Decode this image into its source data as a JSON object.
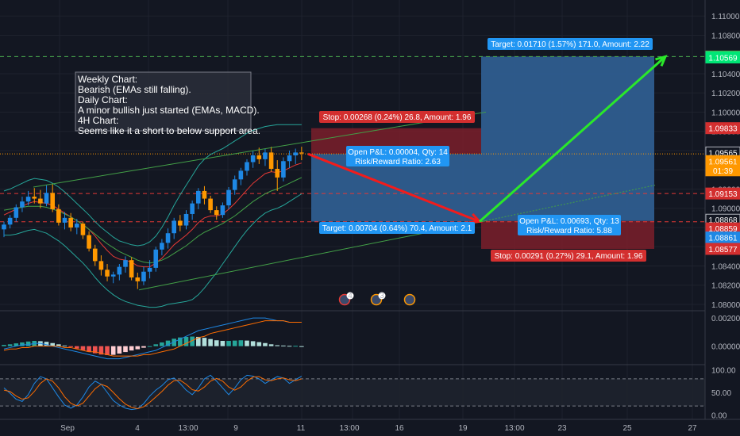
{
  "chart_data": {
    "type": "candlestick",
    "price_axis": {
      "ticks": [
        "1.11000",
        "1.10800",
        "1.10400",
        "1.10200",
        "1.10000",
        "1.09800",
        "1.09600",
        "1.09400",
        "1.09200",
        "1.09000",
        "1.08800",
        "1.08600",
        "1.08400",
        "1.08200",
        "1.08000"
      ],
      "ylim": [
        1.0795,
        1.1115
      ]
    },
    "price_badges": [
      {
        "text": "1.10578",
        "price": 1.10578,
        "bg": "#4caf50",
        "border": "#4caf50"
      },
      {
        "text": "1.10569",
        "price": 1.10569,
        "bg": "#00e676",
        "border": "#00e676",
        "dark": true
      },
      {
        "text": "1.09833",
        "price": 1.09833,
        "bg": "#d32f2f",
        "border": "#d32f2f"
      },
      {
        "text": "1.09565",
        "price": 1.0958,
        "bg": "#131722",
        "border": "#b2b5be"
      },
      {
        "text": "1.09561",
        "price": 1.0949,
        "bg": "#ff9800",
        "border": "#ff9800"
      },
      {
        "text": "01:39",
        "price": 1.09395,
        "bg": "#ff9800",
        "border": "#ff9800"
      },
      {
        "text": "1.09153",
        "price": 1.09153,
        "bg": "#d32f2f",
        "border": "#d32f2f"
      },
      {
        "text": "1.08868",
        "price": 1.0888,
        "bg": "#131722",
        "border": "#b2b5be"
      },
      {
        "text": "1.08859",
        "price": 1.0879,
        "bg": "#d32f2f",
        "border": "#d32f2f"
      },
      {
        "text": "1.08861",
        "price": 1.08695,
        "bg": "#1e88e5",
        "border": "#1e88e5"
      },
      {
        "text": "1.08577",
        "price": 1.08577,
        "bg": "#d32f2f",
        "border": "#d32f2f"
      }
    ],
    "time_axis": [
      "Sep",
      "4",
      "13:00",
      "9",
      "13:00",
      "11",
      "13:00",
      "16",
      "19",
      "13:00",
      "23",
      "25",
      "27"
    ],
    "macd_axis": [
      "0.00200",
      "0.00000"
    ],
    "stoch_axis": [
      "100.00",
      "50.00",
      "0.00"
    ],
    "candles": [
      [
        1.0878,
        1.0886,
        1.087,
        1.0883
      ],
      [
        1.0883,
        1.0893,
        1.0879,
        1.089
      ],
      [
        1.089,
        1.0904,
        1.0886,
        1.0901
      ],
      [
        1.0901,
        1.0912,
        1.0896,
        1.0907
      ],
      [
        1.0907,
        1.0918,
        1.0903,
        1.0912
      ],
      [
        1.0912,
        1.0921,
        1.0905,
        1.091
      ],
      [
        1.091,
        1.0919,
        1.09,
        1.0905
      ],
      [
        1.0905,
        1.0924,
        1.0902,
        1.0916
      ],
      [
        1.0916,
        1.0925,
        1.0896,
        1.0899
      ],
      [
        1.0899,
        1.0904,
        1.0882,
        1.0885
      ],
      [
        1.0885,
        1.0896,
        1.0878,
        1.089
      ],
      [
        1.089,
        1.0895,
        1.0876,
        1.088
      ],
      [
        1.088,
        1.0889,
        1.0873,
        1.0884
      ],
      [
        1.0884,
        1.0886,
        1.0868,
        1.0872
      ],
      [
        1.0872,
        1.0876,
        1.0855,
        1.0858
      ],
      [
        1.0858,
        1.0862,
        1.084,
        1.0845
      ],
      [
        1.0845,
        1.0851,
        1.083,
        1.0836
      ],
      [
        1.0836,
        1.0842,
        1.0824,
        1.0829
      ],
      [
        1.0829,
        1.0834,
        1.0822,
        1.0831
      ],
      [
        1.0831,
        1.0842,
        1.0825,
        1.0839
      ],
      [
        1.0839,
        1.085,
        1.0833,
        1.0846
      ],
      [
        1.0846,
        1.0849,
        1.0825,
        1.0828
      ],
      [
        1.0828,
        1.0833,
        1.0816,
        1.0824
      ],
      [
        1.0824,
        1.0839,
        1.082,
        1.0834
      ],
      [
        1.0834,
        1.0846,
        1.0827,
        1.0838
      ],
      [
        1.0838,
        1.086,
        1.0834,
        1.0857
      ],
      [
        1.0857,
        1.0868,
        1.0851,
        1.0864
      ],
      [
        1.0864,
        1.0879,
        1.0858,
        1.0874
      ],
      [
        1.0874,
        1.089,
        1.0868,
        1.0887
      ],
      [
        1.0887,
        1.0893,
        1.0876,
        1.0882
      ],
      [
        1.0882,
        1.0898,
        1.0878,
        1.0894
      ],
      [
        1.0894,
        1.0908,
        1.0888,
        1.0905
      ],
      [
        1.0905,
        1.0921,
        1.0899,
        1.0918
      ],
      [
        1.0918,
        1.0923,
        1.0904,
        1.091
      ],
      [
        1.091,
        1.0913,
        1.0895,
        1.0898
      ],
      [
        1.0898,
        1.0902,
        1.0888,
        1.0893
      ],
      [
        1.0893,
        1.0906,
        1.089,
        1.0903
      ],
      [
        1.0903,
        1.0922,
        1.0899,
        1.0919
      ],
      [
        1.0919,
        1.0934,
        1.0914,
        1.093
      ],
      [
        1.093,
        1.0942,
        1.0924,
        1.0939
      ],
      [
        1.0939,
        1.0951,
        1.0934,
        1.0948
      ],
      [
        1.0948,
        1.096,
        1.0942,
        1.0955
      ],
      [
        1.0955,
        1.0963,
        1.0946,
        1.0951
      ],
      [
        1.0951,
        1.0962,
        1.0944,
        1.0958
      ],
      [
        1.0958,
        1.0964,
        1.0938,
        1.0941
      ],
      [
        1.0941,
        1.095,
        1.0918,
        1.0932
      ],
      [
        1.0932,
        1.0953,
        1.0928,
        1.0949
      ],
      [
        1.0949,
        1.096,
        1.0942,
        1.0955
      ],
      [
        1.0955,
        1.0962,
        1.0946,
        1.0958
      ],
      [
        1.0958,
        1.0964,
        1.095,
        1.0957
      ]
    ],
    "indicator_lines": [
      {
        "name": "ema-fast",
        "color": "#e53935",
        "values": [
          1.0893,
          1.0896,
          1.0899,
          1.0902,
          1.0905,
          1.0907,
          1.0906,
          1.0905,
          1.0903,
          1.0899,
          1.0895,
          1.0891,
          1.0887,
          1.0883,
          1.0878,
          1.0871,
          1.0863,
          1.0856,
          1.085,
          1.0847,
          1.0846,
          1.0844,
          1.084,
          1.0839,
          1.0839,
          1.0843,
          1.0848,
          1.0855,
          1.0862,
          1.0867,
          1.0872,
          1.0878,
          1.0885,
          1.089,
          1.0892,
          1.0892,
          1.0894,
          1.0899,
          1.0905,
          1.0912,
          1.0919,
          1.0926,
          1.0931,
          1.0936,
          1.0938,
          1.0937,
          1.0939,
          1.0942,
          1.0945,
          1.0947
        ]
      },
      {
        "name": "ema-slow",
        "color": "#43a047",
        "values": [
          1.0898,
          1.0899,
          1.09,
          1.0901,
          1.0902,
          1.0902,
          1.0902,
          1.0901,
          1.0899,
          1.0897,
          1.0894,
          1.0891,
          1.0887,
          1.0883,
          1.0878,
          1.0873,
          1.0868,
          1.0863,
          1.0859,
          1.0855,
          1.0852,
          1.0849,
          1.0846,
          1.0844,
          1.0843,
          1.0844,
          1.0846,
          1.0849,
          1.0853,
          1.0857,
          1.0861,
          1.0866,
          1.0871,
          1.0875,
          1.0878,
          1.0881,
          1.0884,
          1.0888,
          1.0892,
          1.0897,
          1.0902,
          1.0907,
          1.0911,
          1.0915,
          1.0918,
          1.092,
          1.0923,
          1.0926,
          1.0929,
          1.0932
        ]
      },
      {
        "name": "bb-upper",
        "color": "#26a69a",
        "values": [
          1.0918,
          1.092,
          1.0923,
          1.0926,
          1.0929,
          1.0931,
          1.093,
          1.0929,
          1.0926,
          1.0922,
          1.0917,
          1.0911,
          1.0905,
          1.0899,
          1.0893,
          1.0886,
          1.088,
          1.0875,
          1.087,
          1.0866,
          1.0864,
          1.0862,
          1.0861,
          1.0862,
          1.0865,
          1.0871,
          1.088,
          1.0891,
          1.0903,
          1.0914,
          1.0924,
          1.0934,
          1.0944,
          1.0951,
          1.0956,
          1.0959,
          1.0962,
          1.0966,
          1.097,
          1.0974,
          1.0978,
          1.0981,
          1.0983,
          1.0985,
          1.0986,
          1.0987,
          1.0987,
          1.0987,
          1.0987,
          1.0987
        ]
      },
      {
        "name": "bb-lower",
        "color": "#26a69a",
        "values": [
          1.0872,
          1.0872,
          1.0873,
          1.0875,
          1.0877,
          1.0878,
          1.0876,
          1.0874,
          1.087,
          1.0866,
          1.0861,
          1.0855,
          1.0849,
          1.0843,
          1.0836,
          1.0828,
          1.0821,
          1.0815,
          1.081,
          1.0806,
          1.0803,
          1.0801,
          1.0799,
          1.0798,
          1.0797,
          1.0797,
          1.0798,
          1.08,
          1.0801,
          1.0802,
          1.0803,
          1.0805,
          1.081,
          1.0817,
          1.0825,
          1.0833,
          1.0842,
          1.0851,
          1.086,
          1.0869,
          1.0877,
          1.0884,
          1.089,
          1.0895,
          1.0898,
          1.09,
          1.0903,
          1.0907,
          1.0911,
          1.0915
        ]
      }
    ],
    "macd": {
      "histogram": [
        4e-05,
        6e-05,
        9e-05,
        0.00012,
        0.00015,
        0.00017,
        0.00016,
        0.00014,
        0.0001,
        6e-05,
        2e-05,
        -3e-05,
        -8e-05,
        -0.00013,
        -0.00018,
        -0.00023,
        -0.00027,
        -0.00029,
        -0.00028,
        -0.00024,
        -0.00019,
        -0.00014,
        -0.0001,
        -5e-05,
        0.0,
        6e-05,
        0.00012,
        0.00018,
        0.00024,
        0.00028,
        0.0003,
        0.00031,
        0.0003,
        0.00027,
        0.00023,
        0.00019,
        0.00017,
        0.00017,
        0.00018,
        0.00019,
        0.00018,
        0.00016,
        0.00013,
        0.0001,
        6e-05,
        3e-05,
        2e-05,
        1e-05,
        1e-05,
        0.0
      ],
      "macd_line": [
        -0.0002,
        -0.0001,
        0.0,
        0.0001,
        0.0001,
        0.0002,
        0.0002,
        0.0001,
        0.0,
        -0.0001,
        -0.0002,
        -0.0003,
        -0.0004,
        -0.0005,
        -0.0006,
        -0.0007,
        -0.0008,
        -0.0009,
        -0.0009,
        -0.0009,
        -0.0008,
        -0.0007,
        -0.0006,
        -0.0005,
        -0.0004,
        -0.0003,
        -0.0001,
        0.0001,
        0.0003,
        0.0005,
        0.0007,
        0.0009,
        0.0011,
        0.0012,
        0.0013,
        0.0014,
        0.0015,
        0.0016,
        0.0017,
        0.0018,
        0.0019,
        0.002,
        0.002,
        0.002,
        0.0019,
        0.0018,
        0.0018,
        0.0017,
        0.0017,
        0.0017
      ],
      "signal_line": [
        -0.0003,
        -0.0002,
        -0.0002,
        -0.0001,
        -0.0001,
        0.0,
        0.0,
        0.0,
        0.0,
        0.0,
        -0.0001,
        -0.0001,
        -0.0002,
        -0.0003,
        -0.0004,
        -0.0004,
        -0.0005,
        -0.0006,
        -0.0007,
        -0.0007,
        -0.0007,
        -0.0007,
        -0.0007,
        -0.0006,
        -0.0006,
        -0.0005,
        -0.0004,
        -0.0003,
        -0.0002,
        0.0,
        0.0002,
        0.0004,
        0.0006,
        0.0007,
        0.0009,
        0.001,
        0.0011,
        0.0012,
        0.0013,
        0.0014,
        0.0015,
        0.0016,
        0.0017,
        0.0018,
        0.0018,
        0.0018,
        0.0018,
        0.0017,
        0.0017,
        0.0017
      ],
      "ylim": [
        -0.0012,
        0.0024
      ]
    },
    "stochastic": {
      "k": [
        60,
        48,
        35,
        30,
        45,
        70,
        85,
        80,
        60,
        40,
        22,
        15,
        22,
        40,
        62,
        75,
        68,
        50,
        32,
        22,
        15,
        12,
        14,
        25,
        42,
        55,
        65,
        78,
        82,
        70,
        55,
        45,
        60,
        80,
        88,
        75,
        60,
        45,
        60,
        78,
        88,
        86,
        80,
        70,
        78,
        85,
        82,
        70,
        78,
        86
      ],
      "d": [
        55,
        52,
        42,
        35,
        38,
        52,
        70,
        80,
        75,
        60,
        40,
        26,
        20,
        26,
        42,
        58,
        68,
        63,
        50,
        36,
        24,
        17,
        14,
        18,
        28,
        40,
        52,
        66,
        76,
        77,
        68,
        56,
        53,
        62,
        75,
        81,
        75,
        62,
        55,
        62,
        75,
        84,
        85,
        78,
        76,
        80,
        82,
        78,
        76,
        80
      ],
      "ylim": [
        -8,
        108
      ],
      "bands": [
        80,
        20
      ]
    }
  },
  "chart_title": "",
  "drawings": {
    "levels": [
      {
        "price": 1.10578,
        "color": "#4caf50"
      },
      {
        "price": 1.09153,
        "color": "#e53935"
      },
      {
        "price": 1.08859,
        "color": "#e53935"
      },
      {
        "price": 1.09565,
        "color": "#ff9800",
        "dotted": true
      }
    ],
    "positions": [
      {
        "entry": 1.09565,
        "stop": 1.09833,
        "target": 1.08861,
        "from": 49.5,
        "to": 75
      },
      {
        "entry": 1.08868,
        "stop": 1.08577,
        "target": 1.10578,
        "from": 75,
        "to": 89
      }
    ]
  },
  "note_lines": [
    "Weekly Chart:",
    "Bearish (EMAs still falling).",
    "Daily Chart:",
    "A minor bullish just started (EMAs, MACD).",
    "4H Chart:",
    "Seems like it a short to below support area."
  ],
  "labels": {
    "stop_short": "Stop: 0.00268 (0.24%) 26.8, Amount: 1.96",
    "pl_short_line1": "Open P&L: 0.00004, Qty: 14",
    "pl_short_line2": "Risk/Reward Ratio: 2.63",
    "target_short": "Target: 0.00704 (0.64%) 70.4, Amount: 2.1",
    "target_long": "Target: 0.01710 (1.57%) 171.0, Amount: 2.22",
    "pl_long_line1": "Open P&L: 0.00693, Qty: 13",
    "pl_long_line2": "Risk/Reward Ratio: 5.88",
    "stop_long": "Stop: 0.00291 (0.27%) 29.1, Amount: 1.96"
  },
  "events": [
    {
      "count": "4",
      "color": "#e53935"
    },
    {
      "count": "3",
      "color": "#ff9800"
    },
    {
      "count": "",
      "color": "#ff9800"
    }
  ],
  "colors": {
    "up": "#1e88e5",
    "down": "#ff9800",
    "grid": "#1e222d",
    "axis_text": "#b2b5be",
    "macd": "#1e88e5",
    "signal": "#ff6d00",
    "stoch_k": "#1e88e5",
    "stoch_d": "#ff6d00",
    "short_arrow": "#f21c1c",
    "long_arrow": "#2ae82a"
  }
}
